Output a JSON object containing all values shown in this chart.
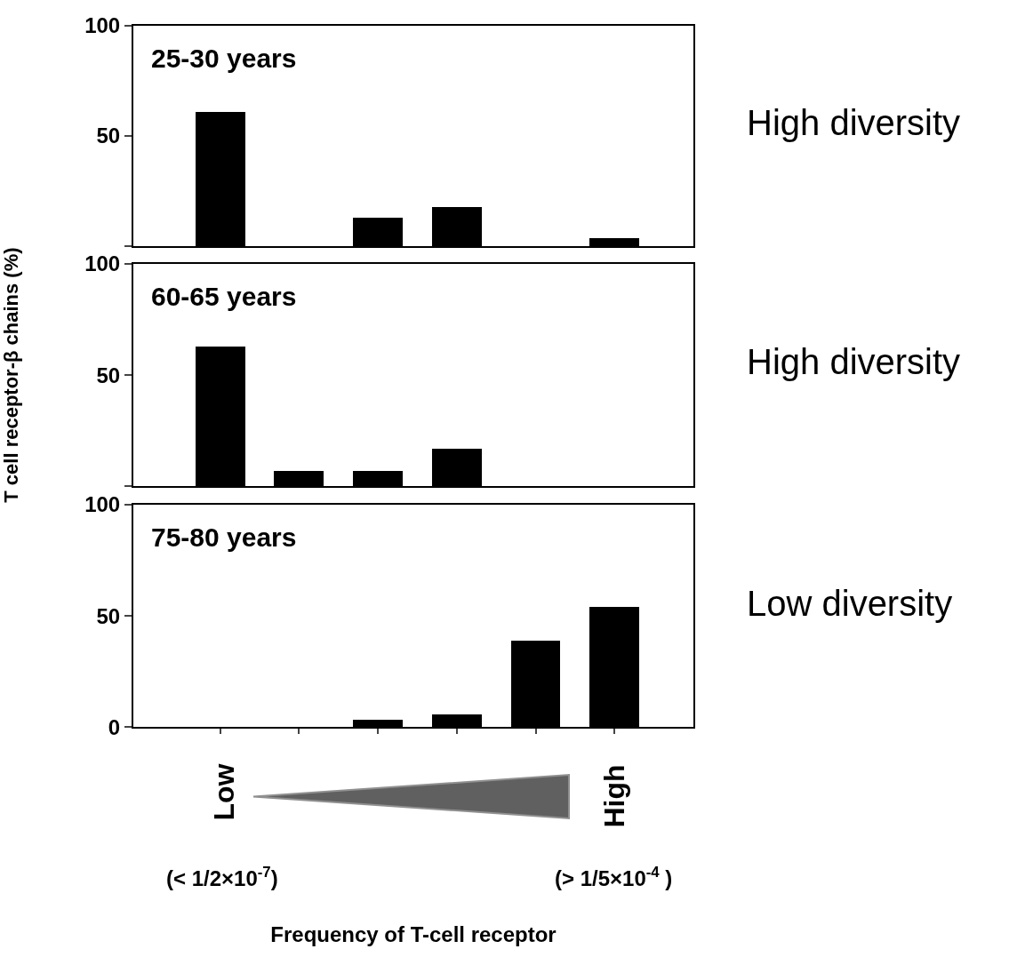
{
  "chart_data": [
    {
      "type": "bar",
      "title": "25-30 years",
      "categories": [
        null,
        null,
        null,
        null,
        null,
        null
      ],
      "values": [
        61,
        0,
        13,
        18,
        0,
        4
      ],
      "color": "#000000",
      "ylim": [
        0,
        100
      ],
      "yticks": [
        {
          "value": 0,
          "label": null
        },
        50,
        100
      ],
      "tick_labels": "y",
      "grid": false,
      "annotations": [
        "High diversity"
      ]
    },
    {
      "type": "bar",
      "title": "60-65 years",
      "ylabel": "T cell receptor-β chains (%)",
      "categories": [
        null,
        null,
        null,
        null,
        null,
        null
      ],
      "values": [
        63,
        7,
        7,
        17,
        0,
        0
      ],
      "color": "#000000",
      "ylim": [
        0,
        100
      ],
      "yticks": [
        {
          "value": 0,
          "label": null
        },
        50,
        100
      ],
      "tick_labels": "y",
      "grid": false,
      "annotations": [
        "High diversity"
      ]
    },
    {
      "type": "bar",
      "title": "75-80 years",
      "xlabel": "Frequency of T-cell receptor",
      "categories": [
        null,
        null,
        null,
        null,
        null,
        null
      ],
      "values": [
        0,
        0,
        3.5,
        6,
        39,
        54
      ],
      "color": "#000000",
      "ylim": [
        0,
        100
      ],
      "yticks": [
        0,
        50,
        100
      ],
      "tick_labels": "y",
      "grid": false,
      "annotations": [
        "Low diversity",
        "Low",
        "High",
        "(< 1/2×10$^{-7}$)",
        "(> 1/5×10$^{-4}$ )"
      ]
    }
  ]
}
